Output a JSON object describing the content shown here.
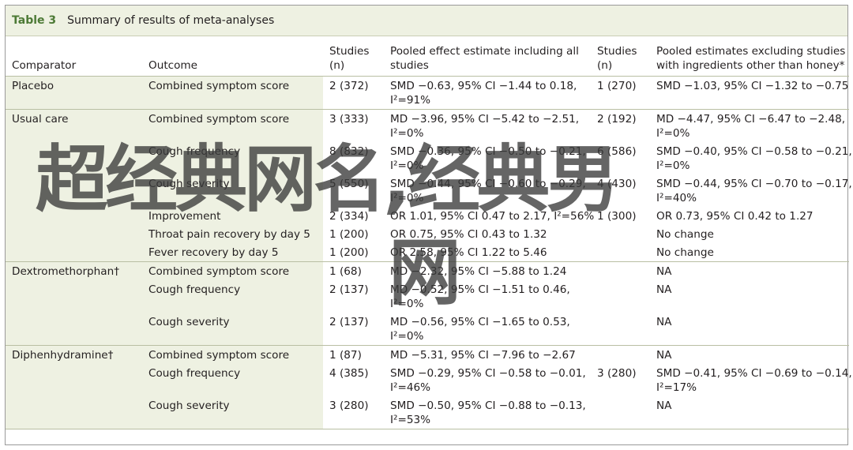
{
  "title": {
    "label": "Table 3",
    "caption": "Summary of results of meta-analyses"
  },
  "headers": [
    "Comparator",
    "Outcome",
    [
      "Studies",
      "(n)"
    ],
    [
      "Pooled effect estimate including all",
      "studies"
    ],
    [
      "Studies",
      "(n)"
    ],
    [
      "Pooled estimates excluding studies",
      "with ingredients other than honey*"
    ]
  ],
  "groups": [
    {
      "comparator": "Placebo",
      "rows": [
        {
          "outcome": "Combined symptom score",
          "n1": "2 (372)",
          "est1": [
            "SMD −0.63, 95% CI −1.44 to 0.18,",
            "I²=91%"
          ],
          "n2": "1 (270)",
          "est2": [
            "SMD −1.03, 95% CI −1.32 to −0.75"
          ]
        }
      ]
    },
    {
      "comparator": "Usual care",
      "rows": [
        {
          "outcome": "Combined symptom score",
          "n1": "3 (333)",
          "est1": [
            "MD −3.96, 95% CI −5.42 to −2.51,",
            "I²=0%"
          ],
          "n2": "2 (192)",
          "est2": [
            "MD −4.47, 95% CI −6.47 to −2.48,",
            "I²=0%"
          ]
        },
        {
          "outcome": "Cough frequency",
          "n1": "8 (832)",
          "est1": [
            "SMD −0.36, 95% CI −0.50 to −0.21,",
            "I²=0%"
          ],
          "n2": "6 (586)",
          "est2": [
            "SMD −0.40, 95% CI −0.58 to −0.21,",
            "I²=0%"
          ]
        },
        {
          "outcome": "Cough severity",
          "n1": "5 (550)",
          "est1": [
            "SMD −0.44, 95% CI −0.60 to −0.29,",
            "I²=0%"
          ],
          "n2": "4 (430)",
          "est2": [
            "SMD −0.44, 95% CI −0.70 to −0.17,",
            "I²=40%"
          ]
        },
        {
          "outcome": "Improvement",
          "n1": "2 (334)",
          "est1": [
            "OR 1.01, 95% CI 0.47 to 2.17, I²=56%"
          ],
          "n2": "1 (300)",
          "est2": [
            "OR 0.73, 95% CI 0.42 to 1.27"
          ]
        },
        {
          "outcome": "Throat pain recovery by day 5",
          "n1": "1 (200)",
          "est1": [
            "OR 0.75, 95% CI 0.43 to 1.32"
          ],
          "n2": "",
          "est2": [
            "No change"
          ]
        },
        {
          "outcome": "Fever recovery by day 5",
          "n1": "1 (200)",
          "est1": [
            "OR 2.58, 95% CI 1.22 to 5.46"
          ],
          "n2": "",
          "est2": [
            "No change"
          ]
        }
      ]
    },
    {
      "comparator": "Dextromethorphan†",
      "rows": [
        {
          "outcome": "Combined symptom score",
          "n1": "1 (68)",
          "est1": [
            "MD −2.32, 95% CI −5.88 to 1.24"
          ],
          "n2": "",
          "est2": [
            "NA"
          ]
        },
        {
          "outcome": "Cough frequency",
          "n1": "2 (137)",
          "est1": [
            "MD −0.52, 95% CI −1.51 to 0.46,",
            "I²=0%"
          ],
          "n2": "",
          "est2": [
            "NA"
          ]
        },
        {
          "outcome": "Cough severity",
          "n1": "2 (137)",
          "est1": [
            "MD −0.56, 95% CI −1.65 to 0.53,",
            "I²=0%"
          ],
          "n2": "",
          "est2": [
            "NA"
          ]
        }
      ]
    },
    {
      "comparator": "Diphenhydramine†",
      "rows": [
        {
          "outcome": "Combined symptom score",
          "n1": "1 (87)",
          "est1": [
            "MD −5.31, 95% CI −7.96 to −2.67"
          ],
          "n2": "",
          "est2": [
            "NA"
          ]
        },
        {
          "outcome": "Cough frequency",
          "n1": "4 (385)",
          "est1": [
            "SMD −0.29, 95% CI −0.58 to −0.01,",
            "I²=46%"
          ],
          "n2": "3 (280)",
          "est2": [
            "SMD −0.41, 95% CI −0.69 to −0.14,",
            "I²=17%"
          ]
        },
        {
          "outcome": "Cough severity",
          "n1": "3 (280)",
          "est1": [
            "SMD −0.50, 95% CI −0.88 to −0.13,",
            "I²=53%"
          ],
          "n2": "",
          "est2": [
            "NA"
          ]
        }
      ]
    }
  ],
  "watermark": {
    "line1": "超经典网名,经典男",
    "line2": "网"
  },
  "colors": {
    "accent": "#4d7a36",
    "header_bg": "#eef1e2",
    "rule": "#b9bfa3"
  }
}
